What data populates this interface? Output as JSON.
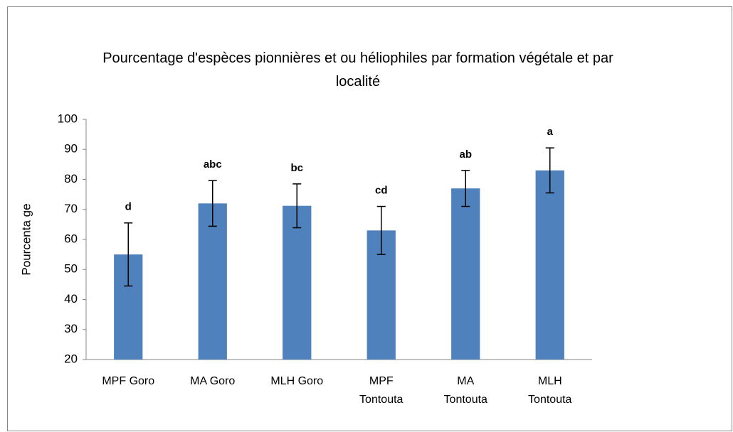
{
  "chart_data": {
    "type": "bar",
    "title": "Pourcentage d'espèces pionnières et ou héliophiles par formation végétale et par localité",
    "y_label": "Pourcenta ge",
    "categories": [
      "MPF Goro",
      "MA Goro",
      "MLH Goro",
      "MPF Tontouta",
      "MA Tontouta",
      "MLH Tontouta"
    ],
    "values": [
      55,
      72,
      71.2,
      63,
      77,
      83
    ],
    "errors": [
      10.5,
      7.6,
      7.3,
      8,
      6,
      7.5
    ],
    "annotations": [
      "d",
      "abc",
      "bc",
      "cd",
      "ab",
      "a"
    ],
    "color": "#4f81bd",
    "ylim": [
      20,
      100
    ],
    "yticks": [
      20,
      30,
      40,
      50,
      60,
      70,
      80,
      90,
      100
    ],
    "grid": false
  }
}
